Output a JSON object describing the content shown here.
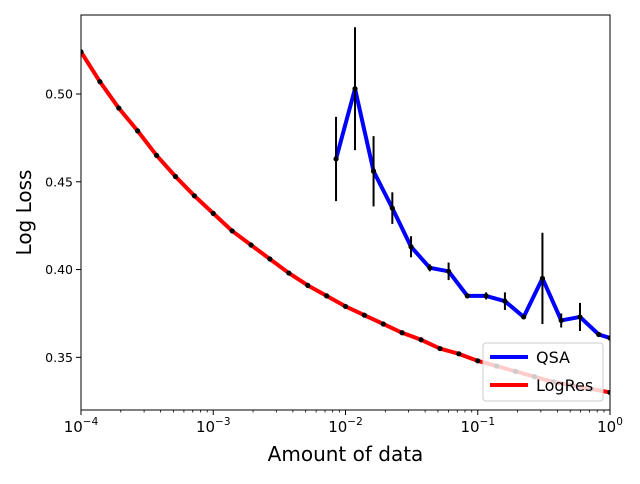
{
  "chart_data": {
    "type": "line",
    "title": "",
    "xlabel": "Amount of data",
    "ylabel": "Log Loss",
    "xscale": "log",
    "xlim": [
      0.0001,
      1
    ],
    "ylim": [
      0.32,
      0.545
    ],
    "x_ticks": [
      {
        "value": 0.0001,
        "base": "10",
        "exp": "−4"
      },
      {
        "value": 0.001,
        "base": "10",
        "exp": "−3"
      },
      {
        "value": 0.01,
        "base": "10",
        "exp": "−2"
      },
      {
        "value": 0.1,
        "base": "10",
        "exp": "−1"
      },
      {
        "value": 1,
        "base": "10",
        "exp": "0"
      }
    ],
    "y_ticks": [
      {
        "value": 0.35,
        "label": "0.35"
      },
      {
        "value": 0.4,
        "label": "0.40"
      },
      {
        "value": 0.45,
        "label": "0.45"
      },
      {
        "value": 0.5,
        "label": "0.50"
      }
    ],
    "grid": false,
    "legend_position": "bottom-right",
    "series": [
      {
        "name": "QSA",
        "color": "#0000ff",
        "marker_color": "#000000",
        "errorbar_color": "#000000",
        "x": [
          0.00848,
          0.0118,
          0.0163,
          0.0226,
          0.0313,
          0.0434,
          0.0602,
          0.0834,
          0.1157,
          0.1605,
          0.2224,
          0.3084,
          0.4276,
          0.5929,
          0.8222,
          1.0
        ],
        "y": [
          0.463,
          0.503,
          0.456,
          0.435,
          0.413,
          0.401,
          0.399,
          0.385,
          0.385,
          0.382,
          0.373,
          0.395,
          0.371,
          0.373,
          0.363,
          0.361
        ],
        "err": [
          0.024,
          0.035,
          0.02,
          0.009,
          0.006,
          0.002,
          0.005,
          0.001,
          0.002,
          0.005,
          0.001,
          0.026,
          0.004,
          0.008,
          0.001,
          0.001
        ]
      },
      {
        "name": "LogRes",
        "color": "#ff0000",
        "marker_color": "#000000",
        "x": [
          0.0001,
          0.000139,
          0.000193,
          0.000268,
          0.000373,
          0.000518,
          0.00072,
          0.001,
          0.00139,
          0.00193,
          0.00268,
          0.00373,
          0.00518,
          0.0072,
          0.01,
          0.0139,
          0.0193,
          0.0268,
          0.0373,
          0.0518,
          0.072,
          0.1,
          0.139,
          0.193,
          0.268,
          0.373,
          0.518,
          0.72,
          1.0
        ],
        "y": [
          0.524,
          0.507,
          0.492,
          0.479,
          0.465,
          0.453,
          0.442,
          0.432,
          0.422,
          0.414,
          0.406,
          0.398,
          0.391,
          0.385,
          0.379,
          0.374,
          0.369,
          0.364,
          0.36,
          0.355,
          0.352,
          0.348,
          0.345,
          0.342,
          0.339,
          0.336,
          0.334,
          0.332,
          0.33
        ]
      }
    ]
  }
}
